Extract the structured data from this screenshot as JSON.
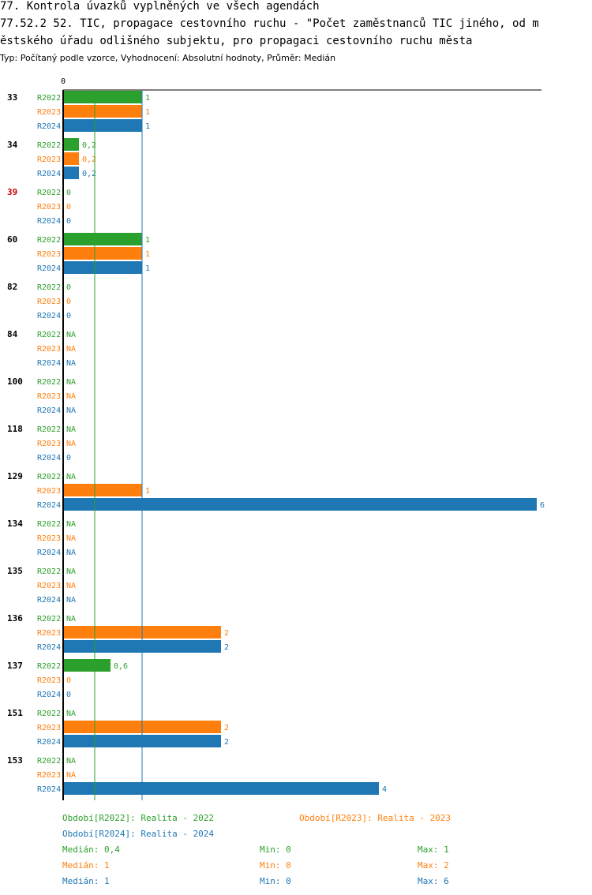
{
  "header": {
    "line1": "77. Kontrola úvazků vyplněných ve všech agendách",
    "line2": "77.52.2 52. TIC, propagace cestovního ruchu - \"Počet zaměstnanců TIC jiného, od m",
    "line3": "ěstského úřadu odlišného subjektu, pro propagaci cestovního ruchu města",
    "subtitle": "Typ: Počítaný podle vzorce, Vyhodnocení: Absolutní hodnoty, Průměr: Medián"
  },
  "colors": {
    "R2022": "#2ca02c",
    "R2023": "#ff7f0e",
    "R2024": "#1f77b4",
    "highlight_group": "#cc0000"
  },
  "chart_data": {
    "type": "bar",
    "orientation": "horizontal",
    "axis_zero_label": "0",
    "xlim": [
      0,
      6
    ],
    "reference_lines": [
      {
        "series": "R2022",
        "value": 0.4
      },
      {
        "series": "R2024",
        "value": 1
      }
    ],
    "series_names": [
      "R2022",
      "R2023",
      "R2024"
    ],
    "groups": [
      {
        "label": "33",
        "highlight": false,
        "values": [
          1,
          1,
          1
        ],
        "labels": [
          "1",
          "1",
          "1"
        ]
      },
      {
        "label": "34",
        "highlight": false,
        "values": [
          0.2,
          0.2,
          0.2
        ],
        "labels": [
          "0,2",
          "0,2",
          "0,2"
        ]
      },
      {
        "label": "39",
        "highlight": true,
        "values": [
          0,
          0,
          0
        ],
        "labels": [
          "0",
          "0",
          "0"
        ]
      },
      {
        "label": "60",
        "highlight": false,
        "values": [
          1,
          1,
          1
        ],
        "labels": [
          "1",
          "1",
          "1"
        ]
      },
      {
        "label": "82",
        "highlight": false,
        "values": [
          0,
          0,
          0
        ],
        "labels": [
          "0",
          "0",
          "0"
        ]
      },
      {
        "label": "84",
        "highlight": false,
        "values": [
          null,
          null,
          null
        ],
        "labels": [
          "NA",
          "NA",
          "NA"
        ]
      },
      {
        "label": "100",
        "highlight": false,
        "values": [
          null,
          null,
          null
        ],
        "labels": [
          "NA",
          "NA",
          "NA"
        ]
      },
      {
        "label": "118",
        "highlight": false,
        "values": [
          null,
          null,
          0
        ],
        "labels": [
          "NA",
          "NA",
          "0"
        ]
      },
      {
        "label": "129",
        "highlight": false,
        "values": [
          null,
          1,
          6
        ],
        "labels": [
          "NA",
          "1",
          "6"
        ]
      },
      {
        "label": "134",
        "highlight": false,
        "values": [
          null,
          null,
          null
        ],
        "labels": [
          "NA",
          "NA",
          "NA"
        ]
      },
      {
        "label": "135",
        "highlight": false,
        "values": [
          null,
          null,
          null
        ],
        "labels": [
          "NA",
          "NA",
          "NA"
        ]
      },
      {
        "label": "136",
        "highlight": false,
        "values": [
          null,
          2,
          2
        ],
        "labels": [
          "NA",
          "2",
          "2"
        ]
      },
      {
        "label": "137",
        "highlight": false,
        "values": [
          0.6,
          0,
          0
        ],
        "labels": [
          "0,6",
          "0",
          "0"
        ]
      },
      {
        "label": "151",
        "highlight": false,
        "values": [
          null,
          2,
          2
        ],
        "labels": [
          "NA",
          "2",
          "2"
        ]
      },
      {
        "label": "153",
        "highlight": false,
        "values": [
          null,
          null,
          4
        ],
        "labels": [
          "NA",
          "NA",
          "4"
        ]
      }
    ]
  },
  "legend": {
    "r2022": "Období[R2022]: Realita - 2022",
    "r2023": "Období[R2023]: Realita - 2023",
    "r2024": "Období[R2024]: Realita - 2024"
  },
  "stats": {
    "r2022": {
      "median": "Medián: 0,4",
      "min": "Min: 0",
      "max": "Max: 1"
    },
    "r2023": {
      "median": "Medián: 1",
      "min": "Min: 0",
      "max": "Max: 2"
    },
    "r2024": {
      "median": "Medián: 1",
      "min": "Min: 0",
      "max": "Max: 6"
    }
  }
}
